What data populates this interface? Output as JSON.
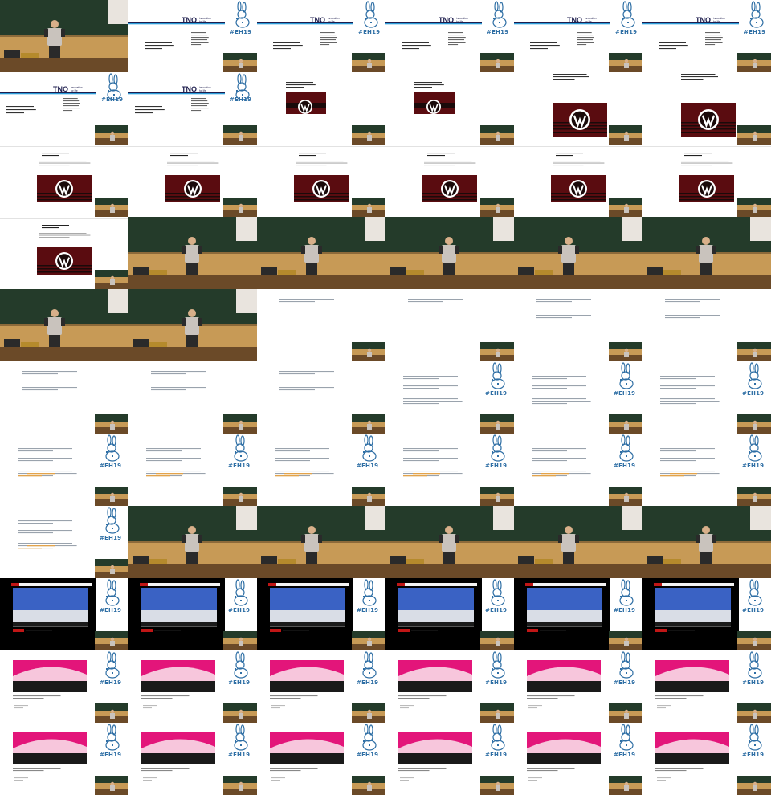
{
  "sheet": {
    "columns": 6,
    "rows": 11,
    "frame_kinds": [
      "speaker",
      "tno",
      "tno",
      "tno",
      "tno",
      "tno",
      "tno2",
      "tno2",
      "vw-small",
      "vw-small",
      "vw-large",
      "vw-large",
      "vw-article",
      "vw-article",
      "vw-article",
      "vw-article",
      "vw-article",
      "vw-article",
      "vw-article",
      "speaker",
      "speaker",
      "speaker",
      "speaker",
      "speaker",
      "speaker",
      "speaker",
      "text1",
      "text1",
      "text2",
      "text2",
      "text2",
      "text2",
      "text2",
      "logo-text",
      "logo-text",
      "logo-text",
      "logo-text3",
      "logo-text3",
      "logo-text3",
      "logo-text3",
      "logo-text3",
      "logo-text3",
      "logo-text3",
      "speaker",
      "speaker",
      "speaker",
      "speaker",
      "speaker",
      "stage-blue",
      "stage-blue",
      "stage-blue",
      "stage-blue",
      "stage-blue",
      "stage-blue",
      "stage-pink",
      "stage-pink",
      "stage-pink",
      "stage-pink",
      "stage-pink",
      "stage-pink",
      "stage-pink",
      "stage-pink",
      "stage-pink",
      "stage-pink",
      "stage-pink",
      "stage-pink"
    ]
  },
  "overlay": {
    "hashtag": "#EH19"
  },
  "tno": {
    "brand": "TNO",
    "tagline_1": "innovation",
    "tagline_2": "for life"
  },
  "colors": {
    "chalkboard": "#243b2a",
    "wall": "#c79a56",
    "wall_dark": "#8c6a3a",
    "desk": "#6b4a28",
    "shirt": "#c9c3bd",
    "vw_red": "#5a0c10",
    "vw_black": "#1a0a0a",
    "hashtag_blue": "#2f6fa5",
    "stage_blue": "#3a62c4",
    "stage_pink": "#e3157a",
    "text_gray": "#9aa3ad"
  }
}
